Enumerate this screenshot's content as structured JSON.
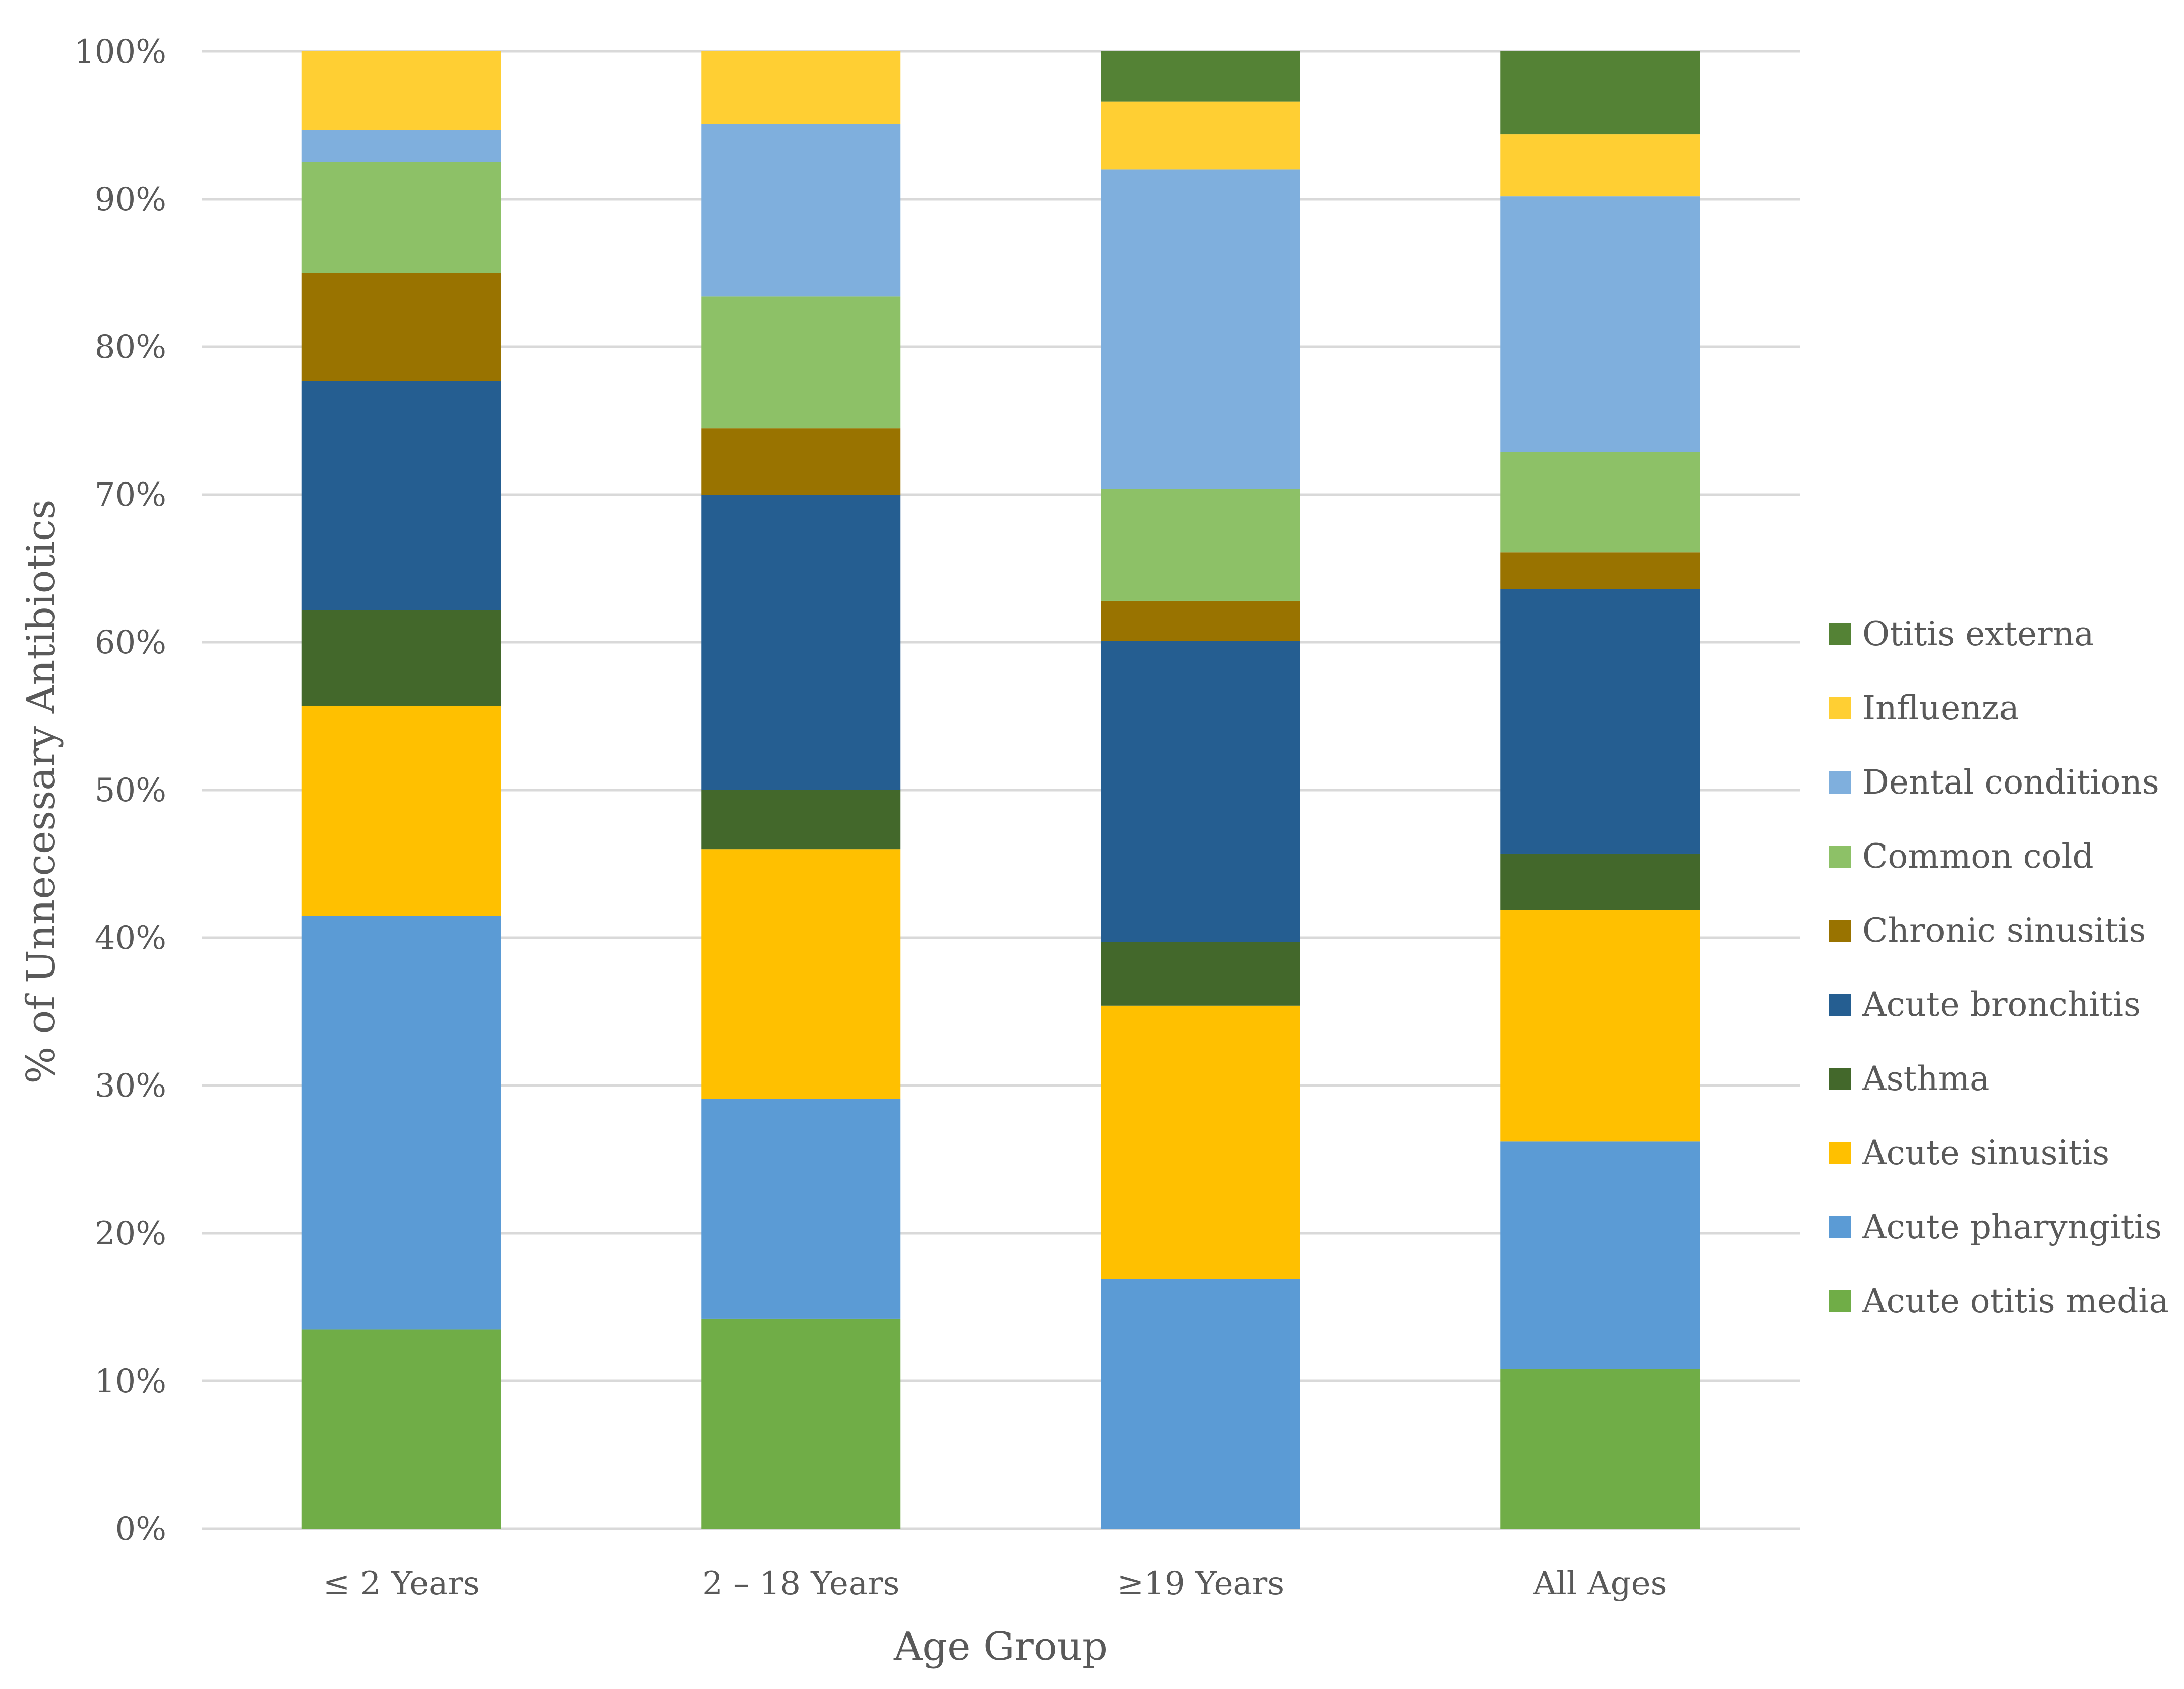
{
  "chart_data": {
    "type": "bar",
    "stacked": true,
    "title": "",
    "xlabel": "Age Group",
    "ylabel": "% of Unnecessary Antibiotics",
    "ylim": [
      0,
      100
    ],
    "ytick_values": [
      0,
      10,
      20,
      30,
      40,
      50,
      60,
      70,
      80,
      90,
      100
    ],
    "ytick_labels": [
      "0%",
      "10%",
      "20%",
      "30%",
      "40%",
      "50%",
      "60%",
      "70%",
      "80%",
      "90%",
      "100%"
    ],
    "grid": true,
    "legend_position": "right",
    "categories": [
      "≤ 2 Years",
      "2 – 18 Years",
      "≥19 Years",
      "All Ages"
    ],
    "series": [
      {
        "name": "Acute otitis media",
        "color": "#70AD47",
        "values": [
          13.5,
          14.2,
          0.0,
          10.8
        ]
      },
      {
        "name": "Acute pharyngitis",
        "color": "#5B9BD5",
        "values": [
          28.0,
          14.9,
          16.9,
          15.4
        ]
      },
      {
        "name": "Acute sinusitis",
        "color": "#FFC000",
        "values": [
          14.2,
          16.9,
          18.5,
          15.7
        ]
      },
      {
        "name": "Asthma",
        "color": "#43682B",
        "values": [
          6.5,
          4.0,
          4.3,
          3.8
        ]
      },
      {
        "name": "Acute bronchitis",
        "color": "#255E91",
        "values": [
          15.5,
          20.0,
          20.4,
          17.9
        ]
      },
      {
        "name": "Chronic sinusitis",
        "color": "#997300",
        "values": [
          7.3,
          4.5,
          2.7,
          2.5
        ]
      },
      {
        "name": "Common cold",
        "color": "#8DC167",
        "values": [
          7.5,
          8.9,
          7.6,
          6.8
        ]
      },
      {
        "name": "Dental conditions",
        "color": "#7FAFDD",
        "values": [
          2.2,
          11.7,
          21.6,
          17.3
        ]
      },
      {
        "name": "Influenza",
        "color": "#FFCF33",
        "values": [
          5.3,
          4.9,
          4.6,
          4.2
        ]
      },
      {
        "name": "Otitis externa",
        "color": "#548235",
        "values": [
          0.0,
          0.0,
          3.4,
          5.6
        ]
      }
    ]
  }
}
